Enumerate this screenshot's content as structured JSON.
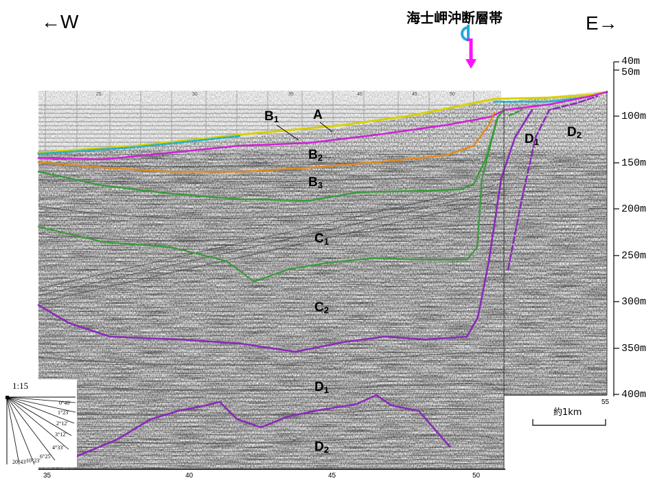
{
  "header": {
    "west_label": "←W",
    "east_label": "E→",
    "fault_zone_label": "海士岬沖断層帯"
  },
  "depth_axis": [
    "40m",
    "50m",
    "100m",
    "150m",
    "200m",
    "250m",
    "300m",
    "350m",
    "400m"
  ],
  "bottom_axis": [
    "35",
    "40",
    "45",
    "50",
    "55"
  ],
  "top_ticks": [
    "25",
    "30",
    "35",
    "40",
    "45",
    "50"
  ],
  "layers": {
    "A": {
      "letter": "A",
      "sub": ""
    },
    "B1": {
      "letter": "B",
      "sub": "1"
    },
    "B2": {
      "letter": "B",
      "sub": "2"
    },
    "B3": {
      "letter": "B",
      "sub": "3"
    },
    "C1": {
      "letter": "C",
      "sub": "1"
    },
    "C2": {
      "letter": "C",
      "sub": "2"
    },
    "D1_left": {
      "letter": "D",
      "sub": "1"
    },
    "D2_left": {
      "letter": "D",
      "sub": "2"
    },
    "D1_right": {
      "letter": "D",
      "sub": "1"
    },
    "D2_right": {
      "letter": "D",
      "sub": "2"
    }
  },
  "scale_bar": {
    "label": "約1km"
  },
  "legend": {
    "ratio": "1:15",
    "angles": [
      "0°40'",
      "1°23'",
      "2°12'",
      "3°12'",
      "4°33'",
      "6°25'",
      "10°23'",
      "20°43'"
    ]
  },
  "colors": {
    "horizon_A": "#d8d000",
    "horizon_A_cyan": "#2bb0c8",
    "horizon_B1": "#d020d8",
    "horizon_B2": "#e08a20",
    "horizon_B3_C1": "#3a9a3a",
    "horizon_C2_D1": "#8a2ab8",
    "fault_cyan": "#24a8e0",
    "fault_magenta": "#ff10ff"
  }
}
